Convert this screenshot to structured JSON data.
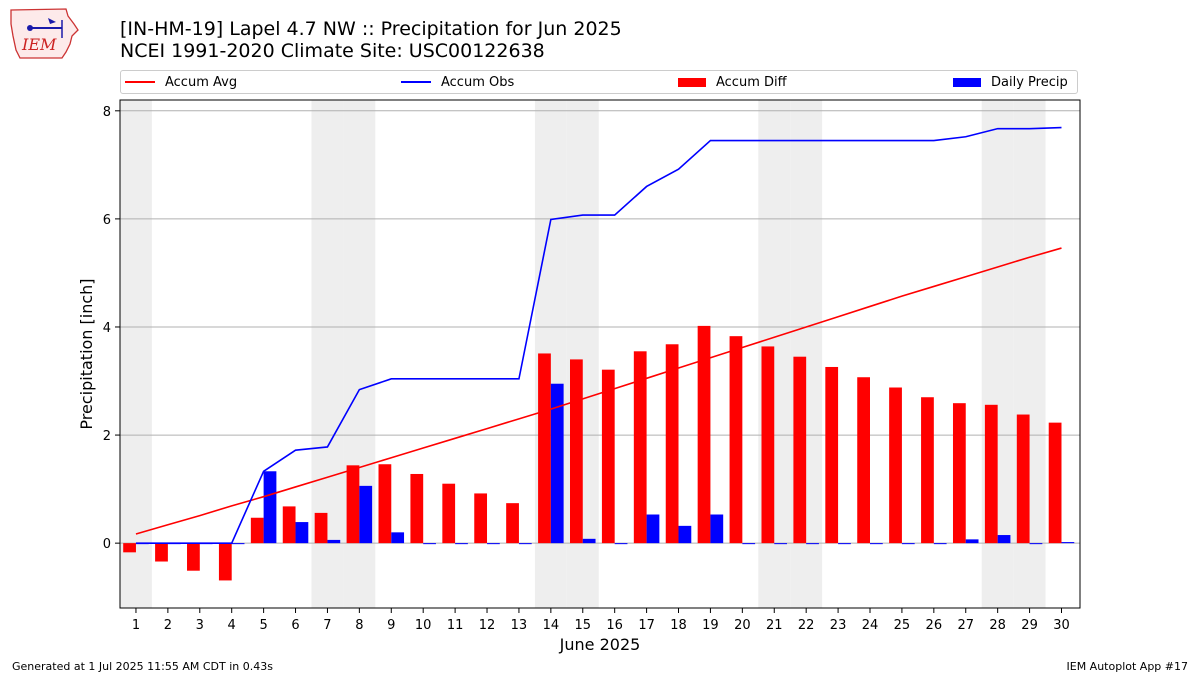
{
  "header": {
    "title_line1": "[IN-HM-19] Lapel 4.7 NW :: Precipitation for Jun 2025",
    "title_line2": "NCEI 1991-2020 Climate Site: USC00122638"
  },
  "logo": {
    "text": "IEM"
  },
  "footer": {
    "generated": "Generated at 1 Jul 2025 11:55 AM CDT in 0.43s",
    "app": "IEM Autoplot App #17"
  },
  "colors": {
    "accum_avg": "#ff0000",
    "accum_obs": "#0000ff",
    "accum_diff": "#ff0000",
    "daily_precip": "#0000ff",
    "weekend_shade": "#eeeeee",
    "grid": "#b0b0b0"
  },
  "chart_data": {
    "type": "bar",
    "xlabel": "June 2025",
    "ylabel": "Precipitation [inch]",
    "ylim": [
      -1.2,
      8.2
    ],
    "yticks": [
      0,
      2,
      4,
      6,
      8
    ],
    "grid": "horizontal",
    "legend_placement": "top",
    "legend": [
      "Accum Avg",
      "Accum Obs",
      "Accum Diff",
      "Daily Precip"
    ],
    "shaded_days": [
      1,
      7,
      8,
      14,
      15,
      21,
      22,
      28,
      29
    ],
    "x": [
      1,
      2,
      3,
      4,
      5,
      6,
      7,
      8,
      9,
      10,
      11,
      12,
      13,
      14,
      15,
      16,
      17,
      18,
      19,
      20,
      21,
      22,
      23,
      24,
      25,
      26,
      27,
      28,
      29,
      30
    ],
    "series": [
      {
        "name": "Accum Avg",
        "kind": "line",
        "values": [
          0.17,
          0.34,
          0.51,
          0.69,
          0.86,
          1.04,
          1.22,
          1.4,
          1.58,
          1.76,
          1.94,
          2.12,
          2.3,
          2.48,
          2.67,
          2.86,
          3.05,
          3.24,
          3.43,
          3.62,
          3.81,
          4.0,
          4.19,
          4.38,
          4.57,
          4.75,
          4.93,
          5.11,
          5.29,
          5.46
        ]
      },
      {
        "name": "Accum Obs",
        "kind": "line",
        "values": [
          0,
          0,
          0,
          0,
          1.33,
          1.72,
          1.78,
          2.84,
          3.04,
          3.04,
          3.04,
          3.04,
          3.04,
          5.99,
          6.07,
          6.07,
          6.6,
          6.92,
          7.45,
          7.45,
          7.45,
          7.45,
          7.45,
          7.45,
          7.45,
          7.45,
          7.52,
          7.67,
          7.67,
          7.69
        ]
      },
      {
        "name": "Accum Diff",
        "kind": "bar",
        "values": [
          -0.17,
          -0.34,
          -0.51,
          -0.69,
          0.47,
          0.68,
          0.56,
          1.44,
          1.46,
          1.28,
          1.1,
          0.92,
          0.74,
          3.51,
          3.4,
          3.21,
          3.55,
          3.68,
          4.02,
          3.83,
          3.64,
          3.45,
          3.26,
          3.07,
          2.88,
          2.7,
          2.59,
          2.56,
          2.38,
          2.23
        ]
      },
      {
        "name": "Daily Precip",
        "kind": "bar",
        "values": [
          0,
          0,
          0,
          0,
          1.33,
          0.39,
          0.06,
          1.06,
          0.2,
          0,
          0,
          0,
          0,
          2.95,
          0.08,
          0,
          0.53,
          0.32,
          0.53,
          0,
          0,
          0,
          0,
          0,
          0,
          0,
          0.07,
          0.15,
          0,
          0.02
        ]
      }
    ]
  }
}
